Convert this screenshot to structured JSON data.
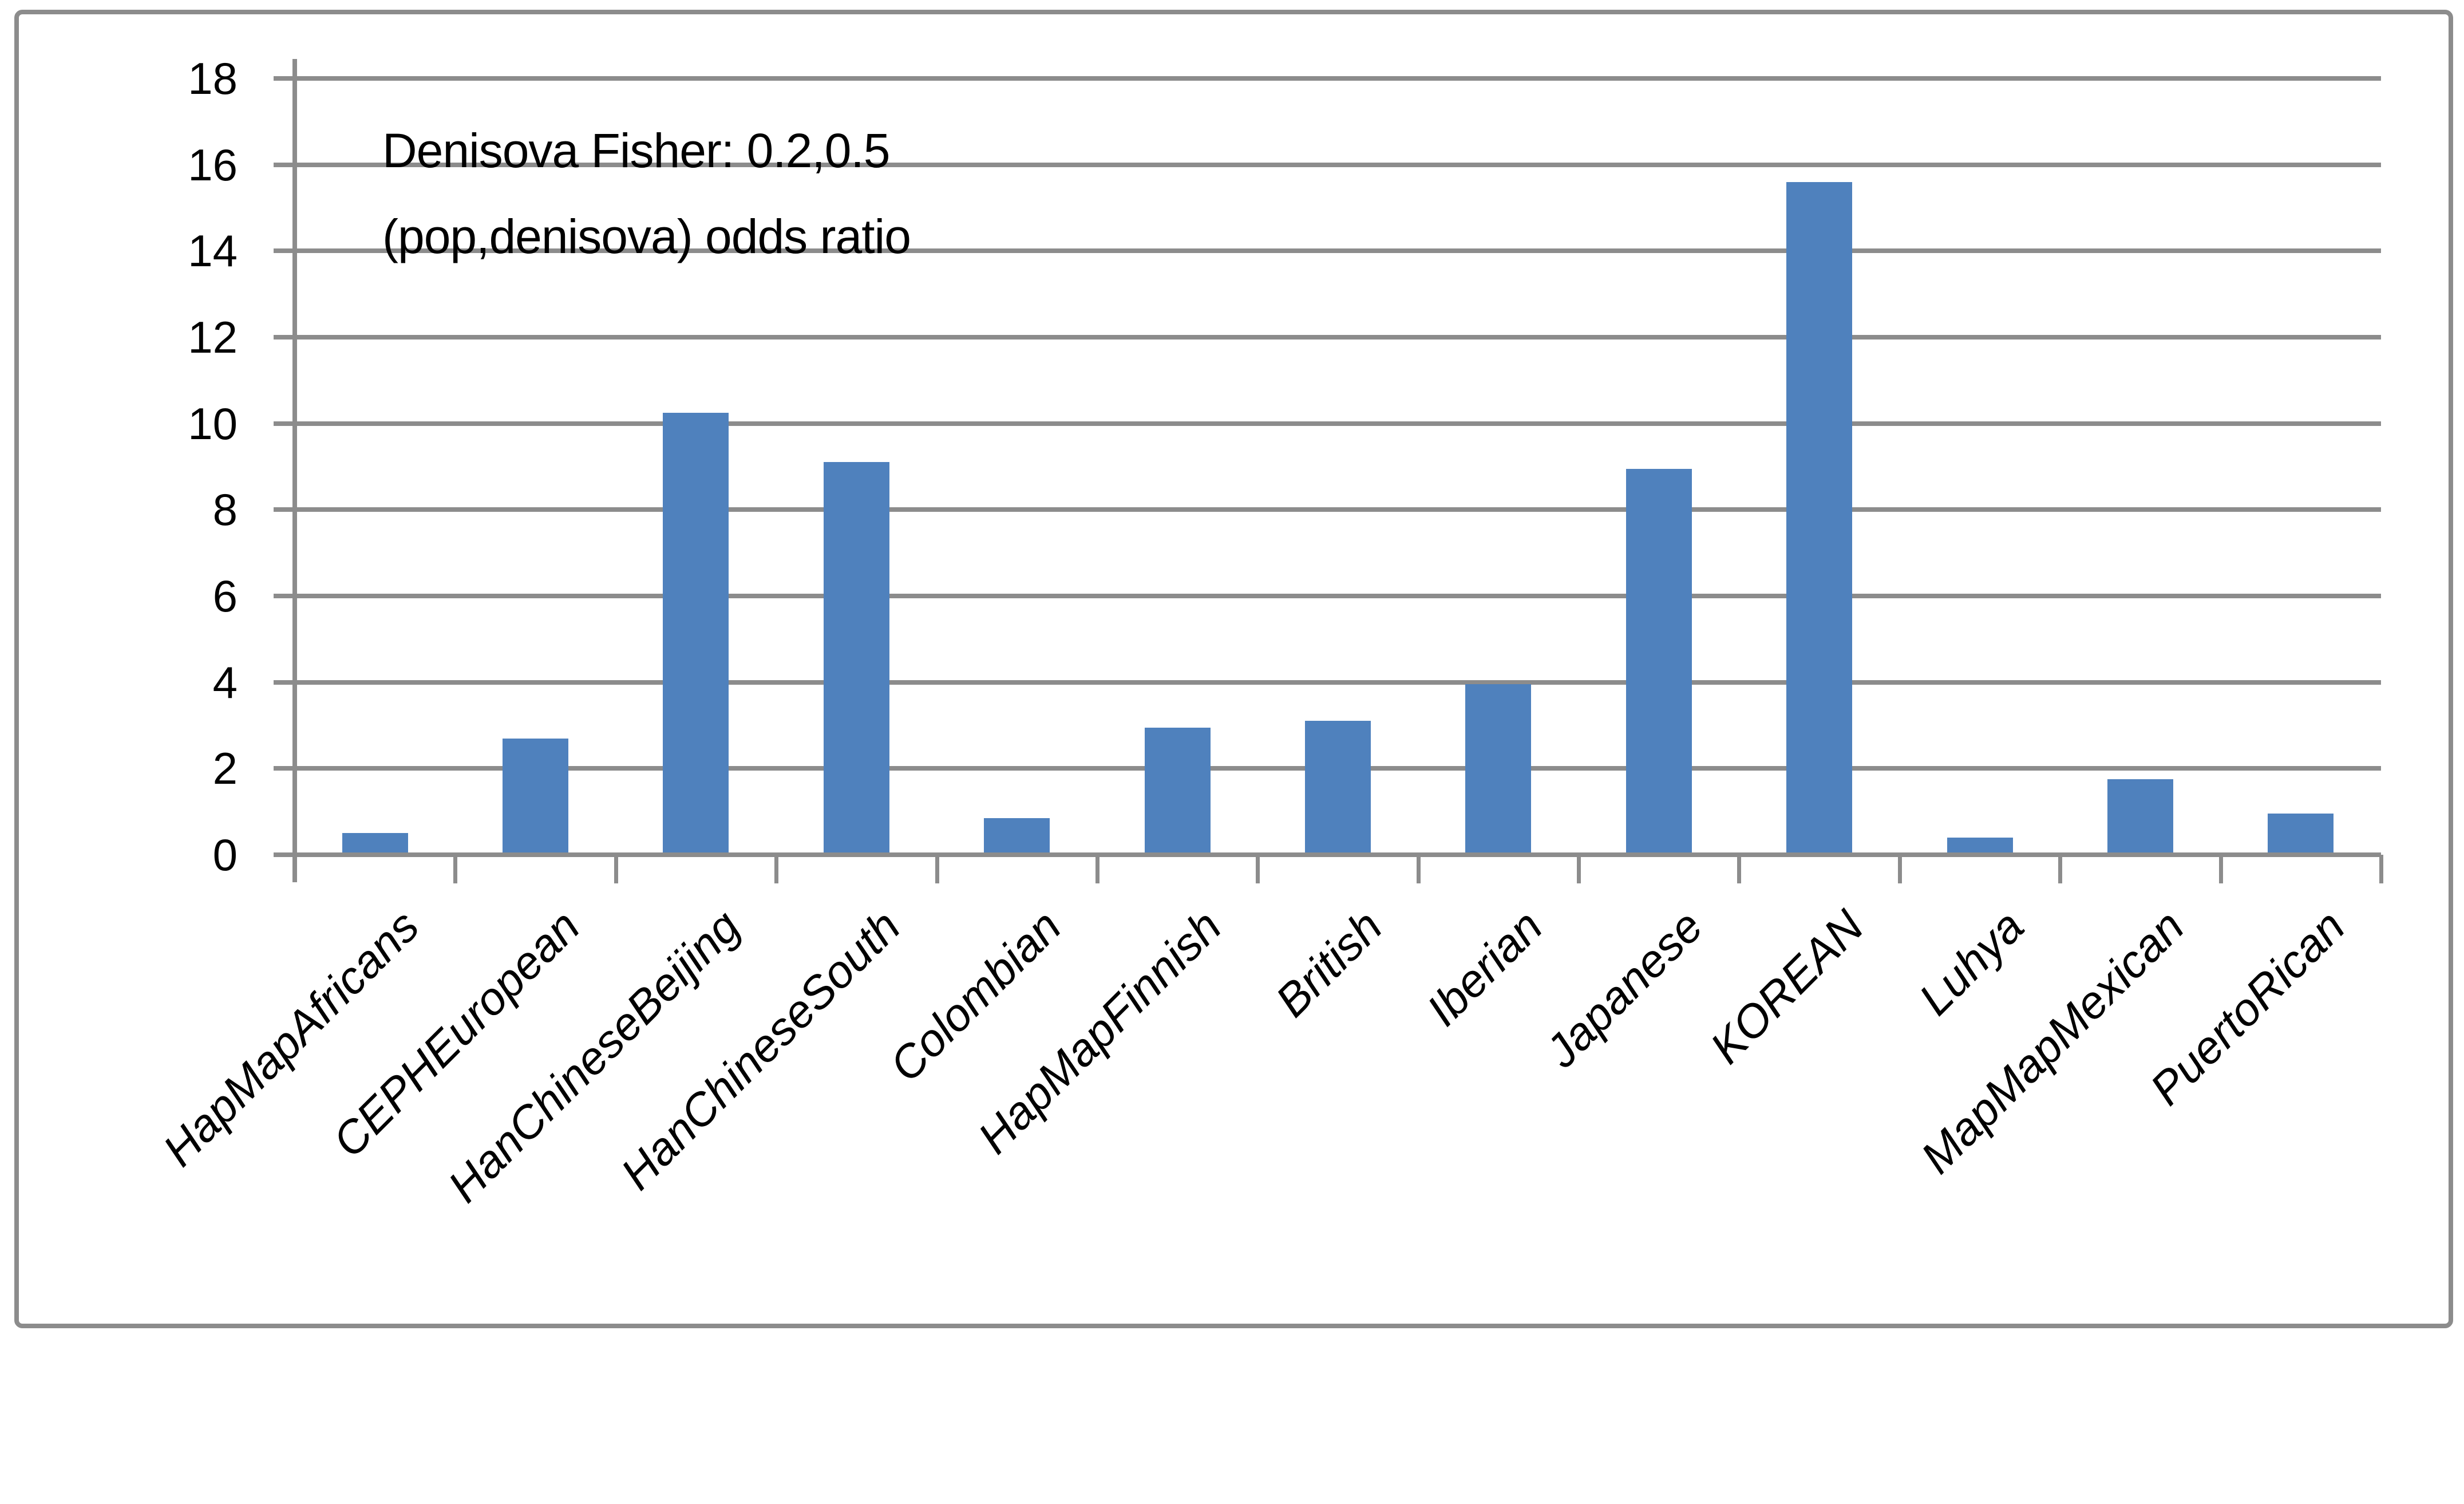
{
  "chart_data": {
    "type": "bar",
    "title_line1": "Denisova Fisher: 0.2,0.5",
    "title_line2": "(pop,denisova) odds ratio",
    "categories": [
      "HapMapAfricans",
      "CEPHEuropean",
      "HanChineseBeijing",
      "HanChineseSouth",
      "Colombian",
      "HapMapFinnish",
      "British",
      "Iberian",
      "Japanese",
      "KOREAN",
      "Luhya",
      "MapMapMexican",
      "PuertoRican"
    ],
    "values": [
      0.5,
      2.7,
      10.25,
      9.1,
      0.85,
      2.95,
      3.1,
      3.95,
      8.95,
      15.6,
      0.4,
      1.75,
      0.95
    ],
    "y_ticks": [
      0,
      2,
      4,
      6,
      8,
      10,
      12,
      14,
      16,
      18
    ],
    "ylim": [
      0,
      18
    ],
    "xlabel": "",
    "ylabel": "",
    "grid": true,
    "legend_position": "none",
    "bar_color": "#4F81BD",
    "grid_color": "#8C8C8C",
    "text_color": "#000000",
    "background_color": "#FFFFFF"
  }
}
